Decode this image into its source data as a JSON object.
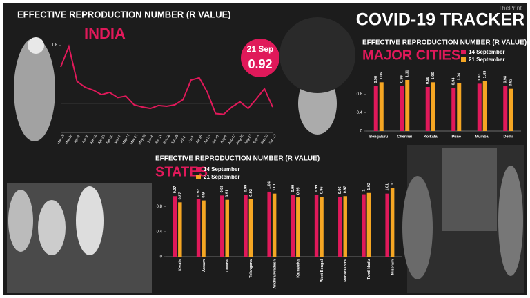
{
  "title": "COVID-19 TRACKER",
  "watermark": "ThePrint",
  "chart_data": [
    {
      "type": "line",
      "title": "EFFECTIVE REPRODUCTION NUMBER (R VALUE)",
      "subtitle": "INDIA",
      "categories": [
        "Mar-19",
        "Mar-26",
        "Apr-2",
        "Apr-9",
        "Apr-16",
        "Apr-23",
        "Apr-30",
        "May-7",
        "May-14",
        "May-21",
        "May-28",
        "Jun-4",
        "Jun-11",
        "Jun-18",
        "Jun-25",
        "Jul-2",
        "Jul-9",
        "Jul-16",
        "Jul-23",
        "Jul-30",
        "Aug-6",
        "Aug-13",
        "Aug-20",
        "Aug-27",
        "Sep-3",
        "Sep-10",
        "Sep-17"
      ],
      "values": [
        1.5,
        1.78,
        1.3,
        1.22,
        1.18,
        1.12,
        1.15,
        1.08,
        1.1,
        0.98,
        0.95,
        0.93,
        0.97,
        0.96,
        0.98,
        1.05,
        1.32,
        1.35,
        1.15,
        0.86,
        0.85,
        0.95,
        1.02,
        0.93,
        1.06,
        1.2,
        0.95
      ],
      "color": "#e0195a",
      "ylim": [
        0.6,
        1.85
      ],
      "yticks": [
        1.8
      ],
      "reference_line": 1,
      "annotation": {
        "date": "21 Sep",
        "value": 0.92
      }
    },
    {
      "type": "bar",
      "title": "EFFECTIVE REPRODUCTION NUMBER (R VALUE)",
      "subtitle": "MAJOR CITIES",
      "categories": [
        "Bengaluru",
        "Chennai",
        "Kolkata",
        "Pune",
        "Mumbai",
        "Delhi"
      ],
      "series": [
        {
          "name": "14 September",
          "color": "#e0195a",
          "values": [
            0.98,
            0.99,
            0.96,
            0.94,
            1.03,
            0.98
          ]
        },
        {
          "name": "21 September",
          "color": "#f5a623",
          "values": [
            1.06,
            1.11,
            1.06,
            1.04,
            1.09,
            0.92
          ]
        }
      ],
      "ylim": [
        0,
        1.2
      ],
      "yticks": [
        0,
        0.4,
        0.8
      ]
    },
    {
      "type": "bar",
      "title": "EFFECTIVE REPRODUCTION NUMBER (R VALUE)",
      "subtitle": "STATES",
      "categories": [
        "Kerala",
        "Assam",
        "Odisha",
        "Telangana",
        "Andhra Pradesh",
        "Karnataka",
        "West Bengal",
        "Maharashtra",
        "Tamil Nadu",
        "Mizoram"
      ],
      "series": [
        {
          "name": "14 September",
          "color": "#e0195a",
          "values": [
            0.97,
            0.92,
            0.98,
            0.99,
            1.04,
            0.99,
            0.99,
            0.96,
            1,
            1.01
          ]
        },
        {
          "name": "21 September",
          "color": "#f5a623",
          "values": [
            0.87,
            0.9,
            0.91,
            0.92,
            1.01,
            0.95,
            0.96,
            0.97,
            1.02,
            1.1
          ]
        }
      ],
      "ylim": [
        0,
        1.15
      ],
      "yticks": [
        0,
        0.4,
        0.8
      ]
    }
  ]
}
